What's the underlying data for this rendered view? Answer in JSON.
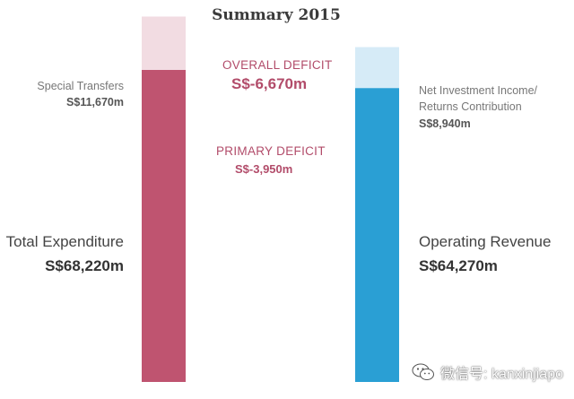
{
  "title": "Summary 2015",
  "colors": {
    "expenditure": "#bf5470",
    "special_transfers": "#f2dce2",
    "revenue": "#2a9fd4",
    "investment": "#d6ebf7",
    "deficit_text": "#b24c6a"
  },
  "labels": {
    "special_transfers": "Special Transfers",
    "special_transfers_value": "S$11,670m",
    "total_expenditure": "Total Expenditure",
    "total_expenditure_value": "S$68,220m",
    "overall_deficit": "OVERALL DEFICIT",
    "overall_deficit_value": "S$-6,670m",
    "primary_deficit": "PRIMARY DEFICIT",
    "primary_deficit_value": "S$-3,950m",
    "net_investment_line1": "Net Investment Income/",
    "net_investment_line2": "Returns Contribution",
    "net_investment_value": "S$8,940m",
    "operating_revenue": "Operating Revenue",
    "operating_revenue_value": "S$64,270m"
  },
  "watermark": {
    "text": "微信号: kanxinjiapo",
    "icon": "wechat-icon"
  },
  "chart_data": {
    "type": "bar",
    "title": "Summary 2015",
    "unit": "S$ million",
    "stacked": true,
    "categories": [
      "Expenditure",
      "Revenue"
    ],
    "series": [
      {
        "name": "Total Expenditure",
        "category": "Expenditure",
        "value": 68220
      },
      {
        "name": "Special Transfers",
        "category": "Expenditure",
        "value": 11670
      },
      {
        "name": "Operating Revenue",
        "category": "Revenue",
        "value": 64270
      },
      {
        "name": "Net Investment Income/Returns Contribution",
        "category": "Revenue",
        "value": 8940
      }
    ],
    "annotations": [
      {
        "name": "Overall Deficit",
        "value": -6670
      },
      {
        "name": "Primary Deficit",
        "value": -3950
      }
    ]
  }
}
